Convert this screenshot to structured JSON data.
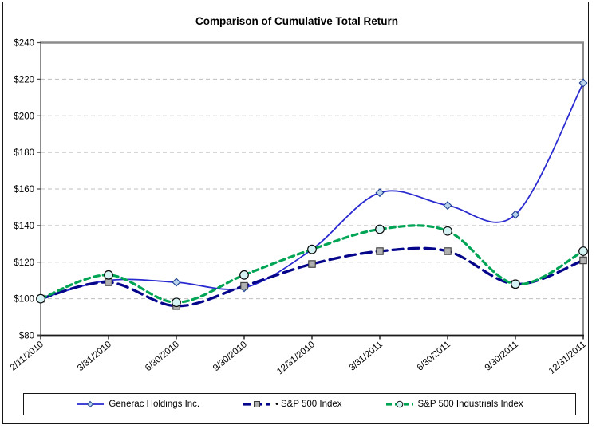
{
  "chart_data": {
    "type": "line",
    "title": "Comparison of Cumulative Total Return",
    "categories": [
      "2/11/2010",
      "3/31/2010",
      "6/30/2010",
      "9/30/2010",
      "12/31/2010",
      "3/31/2011",
      "6/30/2011",
      "9/30/2011",
      "12/31/2011"
    ],
    "series": [
      {
        "name": "Generac Holdings Inc.",
        "values": [
          100,
          110,
          109,
          106,
          127,
          158,
          151,
          146,
          218
        ],
        "color": "#2a2ad1",
        "line_style": "solid",
        "line_width": 1.8,
        "marker": "diamond",
        "marker_fill": "#b9d3ea",
        "marker_stroke": "#1d3e94",
        "legend_prefix": ""
      },
      {
        "name": "S&P 500 Index",
        "values": [
          100,
          109,
          96,
          107,
          119,
          126,
          126,
          108,
          121
        ],
        "color": "#05058c",
        "line_style": "long-dash",
        "line_width": 3.3,
        "marker": "square",
        "marker_fill": "#b0b0b0",
        "marker_stroke": "#3a3a3a",
        "legend_prefix": "•"
      },
      {
        "name": "S&P 500 Industrials Index",
        "values": [
          100,
          113,
          98,
          113,
          127,
          138,
          137,
          108,
          126
        ],
        "color": "#00a455",
        "line_style": "dash",
        "line_width": 3.2,
        "marker": "circle",
        "marker_fill": "#d6f3f3",
        "marker_stroke": "#0b0b0b",
        "legend_prefix": ""
      }
    ],
    "y_axis": {
      "min": 80,
      "max": 240,
      "step": 20,
      "format": "$"
    },
    "y_tick_labels": [
      "$240",
      "$220",
      "$200",
      "$180",
      "$160",
      "$140",
      "$120",
      "$100",
      "$80"
    ],
    "grid": "dashed-horizontal",
    "legend_position": "bottom",
    "colors": {
      "gridline": "#bfbfbf",
      "plot_border": "#8c8c8c",
      "axis": "#1a1a1a",
      "text": "#000000",
      "background": "#ffffff"
    }
  }
}
